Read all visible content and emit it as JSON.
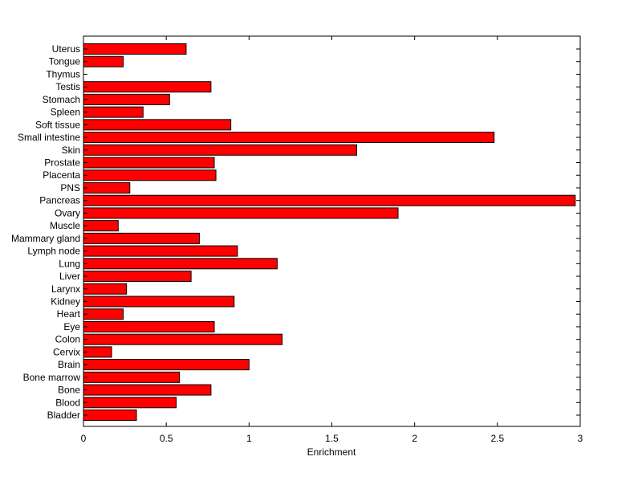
{
  "chart_data": {
    "type": "bar",
    "orientation": "horizontal",
    "title": "",
    "xlabel": "Enrichment",
    "ylabel": "",
    "xlim": [
      0,
      3
    ],
    "xticks": [
      "0",
      "0.5",
      "1",
      "1.5",
      "2",
      "2.5",
      "3"
    ],
    "grid": false,
    "bar_color": "#ff0000",
    "edge_color": "#000000",
    "categories": [
      "Bladder",
      "Blood",
      "Bone",
      "Bone marrow",
      "Brain",
      "Cervix",
      "Colon",
      "Eye",
      "Heart",
      "Kidney",
      "Larynx",
      "Liver",
      "Lung",
      "Lymph node",
      "Mammary gland",
      "Muscle",
      "Ovary",
      "Pancreas",
      "PNS",
      "Placenta",
      "Prostate",
      "Skin",
      "Small intestine",
      "Soft tissue",
      "Spleen",
      "Stomach",
      "Testis",
      "Thymus",
      "Tongue",
      "Uterus"
    ],
    "values": [
      0.32,
      0.56,
      0.77,
      0.58,
      1.0,
      0.17,
      1.2,
      0.79,
      0.24,
      0.91,
      0.26,
      0.65,
      1.17,
      0.93,
      0.7,
      0.21,
      1.9,
      2.97,
      0.28,
      0.8,
      0.79,
      1.65,
      2.48,
      0.89,
      0.36,
      0.52,
      0.77,
      0.0,
      0.24,
      0.62
    ]
  }
}
